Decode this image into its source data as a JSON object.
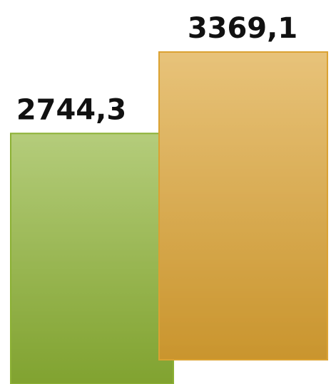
{
  "chart_data": {
    "type": "bar",
    "categories": [
      null,
      null
    ],
    "values": [
      2744.3,
      3369.1
    ],
    "value_labels": [
      "2744,3",
      "3369,1"
    ],
    "colors": [
      "#9cc53a",
      "#f3b437"
    ]
  }
}
